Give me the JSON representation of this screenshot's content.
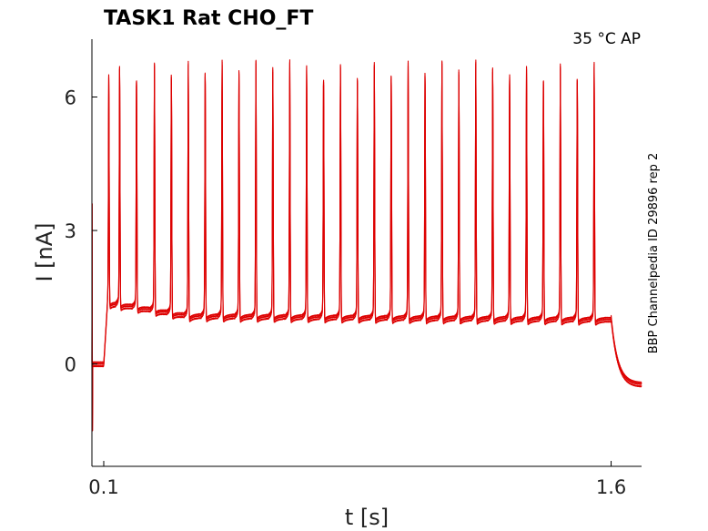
{
  "chart_data": {
    "type": "line",
    "title": "TASK1  Rat  CHO_FT",
    "annotation": "35 °C  AP",
    "side_label": "BBP Channelpedia ID 29896 rep 2",
    "xlabel": "t [s]",
    "ylabel": "I [nA]",
    "xlim": [
      0.065,
      1.69
    ],
    "ylim": [
      -2.3,
      7.3
    ],
    "x_ticks": [
      0.1,
      1.6
    ],
    "x_tick_labels": [
      "0.1",
      "1.6"
    ],
    "y_ticks": [
      0,
      3,
      6
    ],
    "y_tick_labels": [
      "0",
      "3",
      "6"
    ],
    "grid": false,
    "line_color": "#dd0000",
    "stim_on": 0.1,
    "stim_off": 1.6,
    "pre_level": 0.0,
    "baseline_start": 1.4,
    "baseline_mid": 1.1,
    "baseline_end": 1.0,
    "post_level": -0.45,
    "spike_times": [
      0.115,
      0.147,
      0.197,
      0.25,
      0.3,
      0.35,
      0.4,
      0.45,
      0.5,
      0.55,
      0.6,
      0.65,
      0.7,
      0.75,
      0.8,
      0.85,
      0.9,
      0.95,
      1.0,
      1.05,
      1.1,
      1.15,
      1.2,
      1.25,
      1.3,
      1.35,
      1.4,
      1.45,
      1.5,
      1.55
    ],
    "spike_peaks": [
      6.25,
      6.45,
      6.45,
      6.45,
      6.45,
      6.45,
      6.45,
      6.45,
      6.45,
      6.45,
      6.45,
      6.45,
      6.45,
      6.45,
      6.45,
      6.45,
      6.45,
      6.45,
      6.45,
      6.45,
      6.45,
      6.45,
      6.45,
      6.45,
      6.45,
      6.45,
      6.45,
      6.45,
      6.45,
      6.45
    ]
  }
}
